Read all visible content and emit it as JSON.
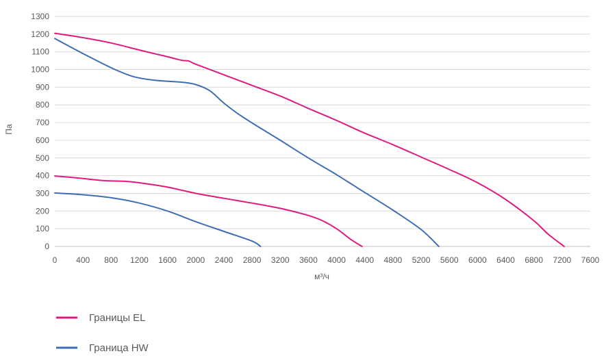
{
  "chart_data": {
    "type": "line",
    "xlabel": "м³/ч",
    "ylabel": "Па",
    "xlim": [
      0,
      7600
    ],
    "ylim": [
      0,
      1300
    ],
    "x_ticks": [
      0,
      400,
      800,
      1200,
      1600,
      2000,
      2400,
      2800,
      3200,
      3600,
      4000,
      4400,
      4800,
      5200,
      5600,
      6000,
      6400,
      6800,
      7200,
      7600
    ],
    "y_ticks": [
      0,
      100,
      200,
      300,
      400,
      500,
      600,
      700,
      800,
      900,
      1000,
      1100,
      1200,
      1300
    ],
    "grid": "horizontal",
    "legend_position": "bottom-left",
    "legend": [
      "Границы EL",
      "Граница HW"
    ],
    "series": [
      {
        "name": "Границы EL",
        "color": "#e0197d",
        "segments": [
          [
            [
              0,
              1205
            ],
            [
              400,
              1180
            ],
            [
              800,
              1150
            ],
            [
              1200,
              1110
            ],
            [
              1600,
              1072
            ],
            [
              1800,
              1052
            ],
            [
              1900,
              1048
            ],
            [
              2000,
              1030
            ],
            [
              2400,
              970
            ],
            [
              2800,
              910
            ],
            [
              3200,
              850
            ],
            [
              3600,
              780
            ],
            [
              4000,
              712
            ],
            [
              4400,
              640
            ],
            [
              4800,
              575
            ],
            [
              5200,
              505
            ],
            [
              5600,
              435
            ],
            [
              6000,
              360
            ],
            [
              6400,
              265
            ],
            [
              6800,
              145
            ],
            [
              7000,
              70
            ],
            [
              7230,
              0
            ]
          ],
          [
            [
              0,
              398
            ],
            [
              300,
              388
            ],
            [
              700,
              372
            ],
            [
              1000,
              368
            ],
            [
              1200,
              360
            ],
            [
              1600,
              335
            ],
            [
              2000,
              300
            ],
            [
              2400,
              272
            ],
            [
              2800,
              245
            ],
            [
              3200,
              215
            ],
            [
              3600,
              175
            ],
            [
              3800,
              145
            ],
            [
              4000,
              100
            ],
            [
              4200,
              40
            ],
            [
              4360,
              0
            ]
          ]
        ]
      },
      {
        "name": "Граница HW",
        "color": "#3e6db5",
        "segments": [
          [
            [
              0,
              1175
            ],
            [
              400,
              1090
            ],
            [
              800,
              1010
            ],
            [
              1100,
              962
            ],
            [
              1400,
              940
            ],
            [
              1800,
              928
            ],
            [
              2000,
              915
            ],
            [
              2200,
              880
            ],
            [
              2400,
              810
            ],
            [
              2600,
              750
            ],
            [
              2800,
              698
            ],
            [
              3200,
              600
            ],
            [
              3600,
              500
            ],
            [
              4000,
              405
            ],
            [
              4400,
              305
            ],
            [
              4800,
              205
            ],
            [
              5200,
              95
            ],
            [
              5450,
              0
            ]
          ],
          [
            [
              0,
              302
            ],
            [
              400,
              292
            ],
            [
              800,
              275
            ],
            [
              1200,
              245
            ],
            [
              1600,
              200
            ],
            [
              2000,
              140
            ],
            [
              2400,
              85
            ],
            [
              2800,
              30
            ],
            [
              2920,
              0
            ]
          ]
        ]
      }
    ]
  }
}
